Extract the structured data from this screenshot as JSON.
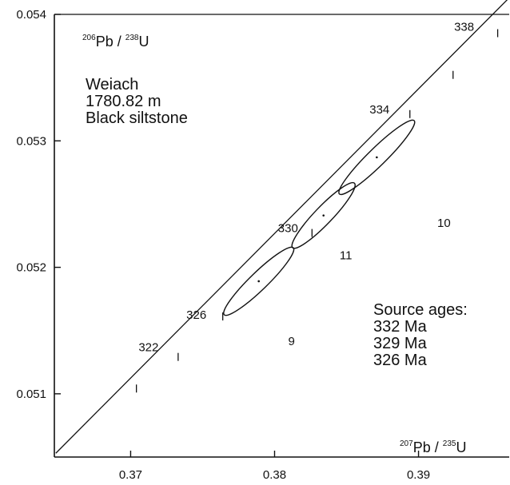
{
  "chart_data": {
    "type": "scatter",
    "title": "",
    "xlabel": {
      "num_mass": "207",
      "num_el": "Pb",
      "sep": "/",
      "den_mass": "235",
      "den_el": "U"
    },
    "ylabel": {
      "num_mass": "206",
      "num_el": "Pb",
      "sep": "/",
      "den_mass": "238",
      "den_el": "U"
    },
    "xlim": [
      0.3647,
      0.3963
    ],
    "ylim": [
      0.0505,
      0.054
    ],
    "x_ticks": [
      0.37,
      0.38,
      0.39
    ],
    "x_tick_labels": [
      "0.37",
      "0.38",
      "0.39"
    ],
    "y_ticks": [
      0.051,
      0.052,
      0.053,
      0.054
    ],
    "y_tick_labels": [
      "0.051",
      "0.052",
      "0.053",
      "0.054"
    ],
    "grid": false,
    "concordia": {
      "points": [
        {
          "x": 0.3648,
          "y": 0.05053
        },
        {
          "x": 0.3962,
          "y": 0.05412
        }
      ],
      "age_marks": [
        {
          "age": "322",
          "x": 0.3733,
          "y": 0.05126,
          "labeled": true
        },
        {
          "age": "",
          "x": 0.3704,
          "y": 0.05101,
          "labeled": false
        },
        {
          "age": "326",
          "x": 0.3764,
          "y": 0.05158,
          "labeled": true
        },
        {
          "age": "330",
          "x": 0.3826,
          "y": 0.05224,
          "labeled": true
        },
        {
          "age": "334",
          "x": 0.3894,
          "y": 0.05318,
          "labeled": true
        },
        {
          "age": "",
          "x": 0.3924,
          "y": 0.05349,
          "labeled": false
        },
        {
          "age": "338",
          "x": 0.3955,
          "y": 0.05382,
          "labeled": true
        }
      ]
    },
    "ellipses": [
      {
        "fraction": "9",
        "x": 0.3789,
        "y": 0.05189,
        "x_min": 0.3765,
        "x_max": 0.3813,
        "y_min": 0.05162,
        "y_max": 0.05215
      },
      {
        "fraction": "11",
        "x": 0.3834,
        "y": 0.05241,
        "x_min": 0.3813,
        "x_max": 0.3856,
        "y_min": 0.05215,
        "y_max": 0.05266
      },
      {
        "fraction": "10",
        "x": 0.3871,
        "y": 0.05287,
        "x_min": 0.3845,
        "x_max": 0.3897,
        "y_min": 0.05259,
        "y_max": 0.05317
      }
    ]
  },
  "info": {
    "sample_line1": "Weiach",
    "sample_line2": "1780.82 m",
    "sample_line3": "Black siltstone",
    "source_title": "Source ages:",
    "source_ages": [
      "332 Ma",
      "329 Ma",
      "326 Ma"
    ]
  }
}
